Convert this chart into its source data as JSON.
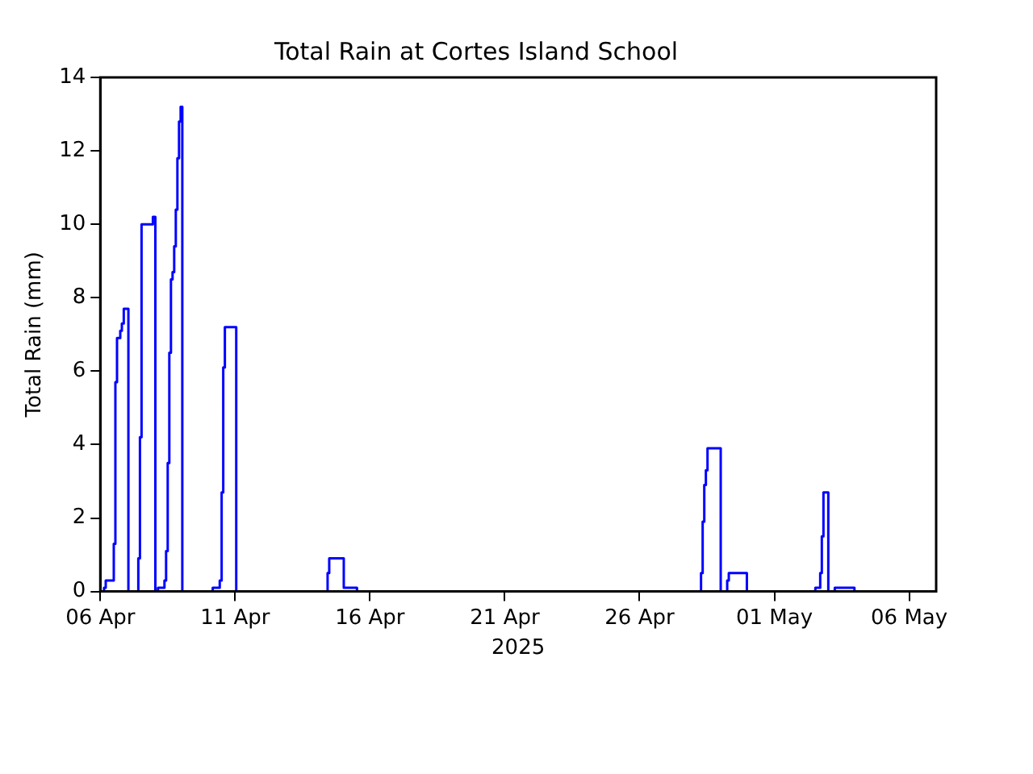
{
  "chart_data": {
    "type": "step",
    "title": "Total Rain at Cortes Island School",
    "xlabel": "2025",
    "ylabel": "Total Rain (mm)",
    "series": [
      {
        "color": "#0000ff",
        "x": [
          "2025-04-06T00:00",
          "2025-04-06T03:20",
          "2025-04-06T04:50",
          "2025-04-06T12:00",
          "2025-04-06T13:26",
          "2025-04-06T14:53",
          "2025-04-06T17:46",
          "2025-04-06T19:12",
          "2025-04-06T20:53",
          "2025-04-07T01:00",
          "2025-04-07T09:50",
          "2025-04-07T11:17",
          "2025-04-07T12:43",
          "2025-04-07T22:48",
          "2025-04-08T01:00",
          "2025-04-08T03:20",
          "2025-04-08T09:07",
          "2025-04-08T10:34",
          "2025-04-08T12:00",
          "2025-04-08T13:26",
          "2025-04-08T14:53",
          "2025-04-08T16:19",
          "2025-04-08T17:46",
          "2025-04-08T19:12",
          "2025-04-08T20:38",
          "2025-04-08T22:05",
          "2025-04-08T23:31",
          "2025-04-09T01:00",
          "2025-04-10T04:05",
          "2025-04-10T10:19",
          "2025-04-10T12:00",
          "2025-04-10T13:26",
          "2025-04-10T14:53",
          "2025-04-11T01:00",
          "2025-04-14T10:19",
          "2025-04-14T11:46",
          "2025-04-15T00:43",
          "2025-04-15T12:29",
          "2025-04-28T06:43",
          "2025-04-28T08:10",
          "2025-04-28T09:36",
          "2025-04-28T11:02",
          "2025-04-28T12:29",
          "2025-04-29T00:14",
          "2025-04-29T06:00",
          "2025-04-29T07:26",
          "2025-04-29T23:31",
          "2025-05-02T12:29",
          "2025-05-02T16:48",
          "2025-05-02T18:14",
          "2025-05-02T19:41",
          "2025-05-03T00:00",
          "2025-05-03T05:46",
          "2025-05-03T23:17"
        ],
        "values": [
          0,
          0.1,
          0.3,
          1.3,
          5.7,
          6.9,
          7.1,
          7.3,
          7.7,
          0,
          0.9,
          4.2,
          10.0,
          10.2,
          0,
          0.1,
          0.3,
          1.1,
          3.5,
          6.5,
          8.5,
          8.7,
          9.4,
          10.4,
          11.8,
          12.8,
          13.2,
          0,
          0.1,
          0.3,
          2.7,
          6.1,
          7.2,
          0,
          0.5,
          0.9,
          0.1,
          0,
          0.5,
          1.9,
          2.9,
          3.3,
          3.9,
          0,
          0.3,
          0.5,
          0,
          0.1,
          0.5,
          1.5,
          2.7,
          0,
          0.1,
          0
        ]
      }
    ],
    "xlim": [
      "2025-04-06",
      "2025-05-07"
    ],
    "xticks": [
      {
        "value": "2025-04-06",
        "label": "06 Apr"
      },
      {
        "value": "2025-04-11",
        "label": "11 Apr"
      },
      {
        "value": "2025-04-16",
        "label": "16 Apr"
      },
      {
        "value": "2025-04-21",
        "label": "21 Apr"
      },
      {
        "value": "2025-04-26",
        "label": "26 Apr"
      },
      {
        "value": "2025-05-01",
        "label": "01 May"
      },
      {
        "value": "2025-05-06",
        "label": "06 May"
      }
    ],
    "ylim": [
      0,
      14
    ],
    "yticks": [
      0,
      2,
      4,
      6,
      8,
      10,
      12,
      14
    ],
    "grid": false,
    "legend": false
  }
}
